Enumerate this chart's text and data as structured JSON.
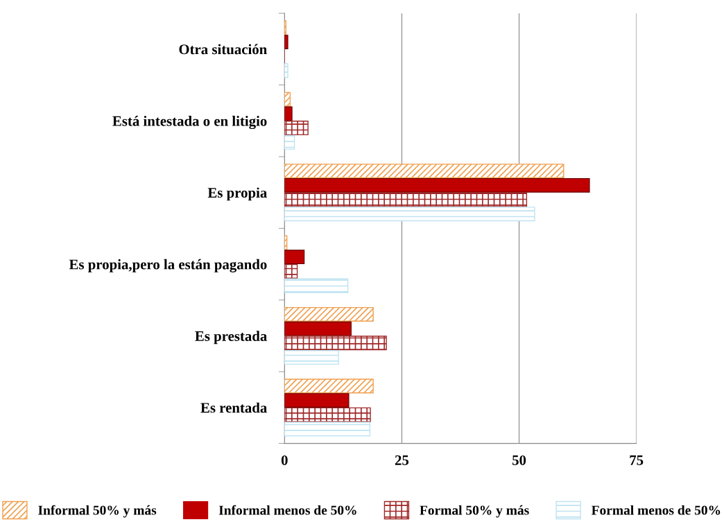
{
  "chart_data": {
    "type": "bar",
    "orientation": "horizontal",
    "categories": [
      "Otra situación",
      "Está intestada o en litigio",
      "Es propia",
      "Es propia,pero la están pagando",
      "Es prestada",
      "Es rentada"
    ],
    "series": [
      {
        "name": "Informal 50% y más",
        "color": "#f0a050",
        "values": [
          0.3,
          1.2,
          59.5,
          0.5,
          18.9,
          18.9
        ]
      },
      {
        "name": "Informal menos de 50%",
        "color": "#c00000",
        "values": [
          0.7,
          1.6,
          65.0,
          4.2,
          14.2,
          13.7
        ]
      },
      {
        "name": "Formal 50% y más",
        "color": "#a02828",
        "values": [
          0,
          5.0,
          51.6,
          2.7,
          21.7,
          18.3
        ]
      },
      {
        "name": "Formal menos de 50%",
        "color": "#bfe3f2",
        "values": [
          0.7,
          2.1,
          53.3,
          13.5,
          11.5,
          18.2
        ]
      }
    ],
    "xlim": [
      0,
      75
    ],
    "xticks": [
      0,
      25,
      50,
      75
    ],
    "grid": "x",
    "legend": "bottom"
  }
}
